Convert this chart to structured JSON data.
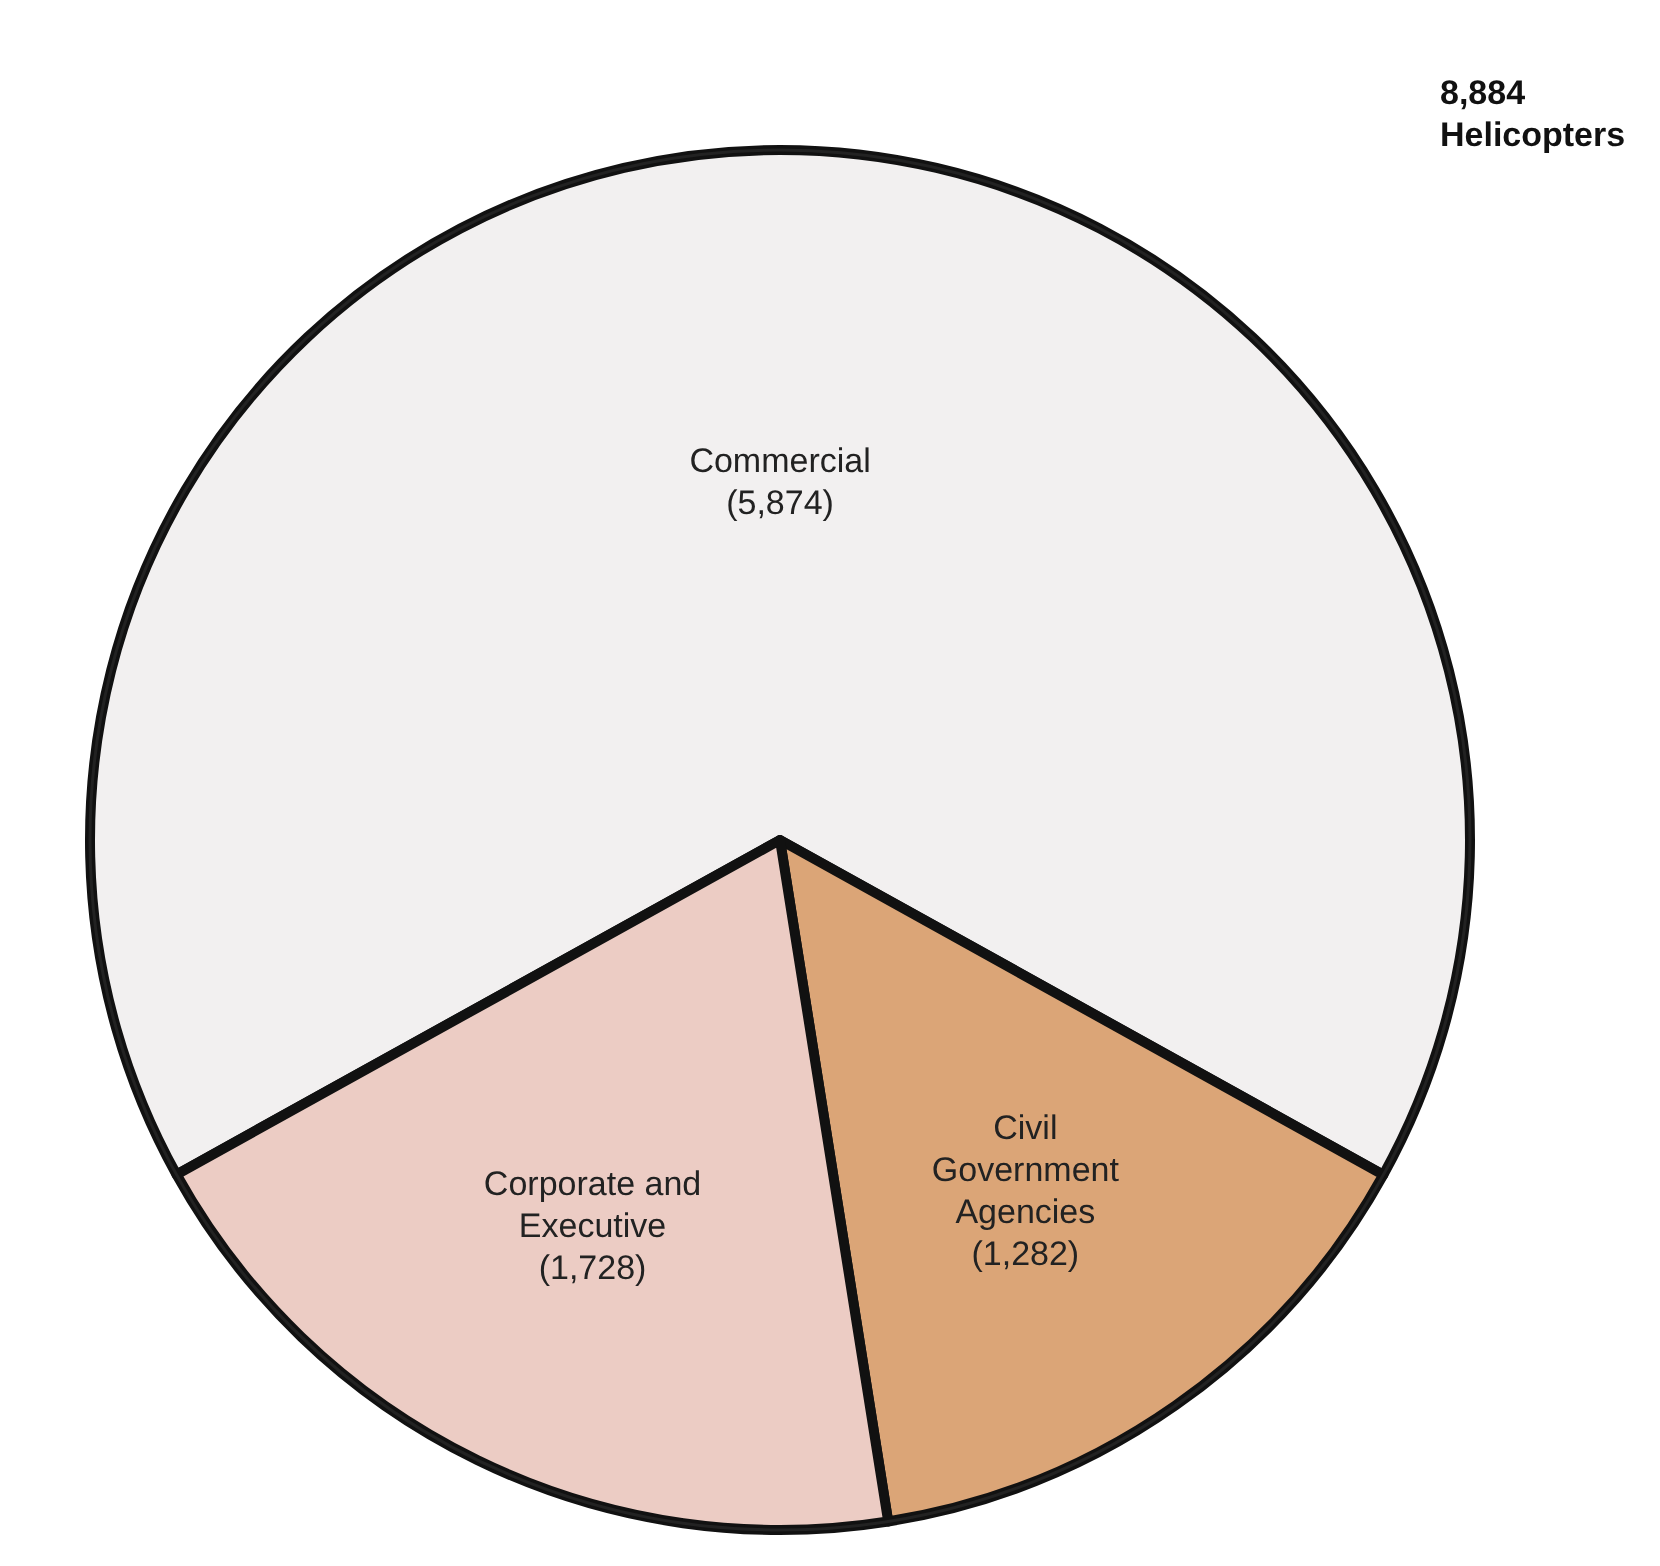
{
  "chart_data": {
    "type": "pie",
    "title": "8,884 Helicopters",
    "categories": [
      "Commercial",
      "Civil Government Agencies",
      "Corporate and Executive"
    ],
    "values": [
      5874,
      1282,
      1728
    ],
    "value_labels": [
      "(5,874)",
      "(1,282)",
      "(1,728)"
    ],
    "colors": [
      "#f2f0f0",
      "#dba577",
      "#ecccc4"
    ]
  }
}
